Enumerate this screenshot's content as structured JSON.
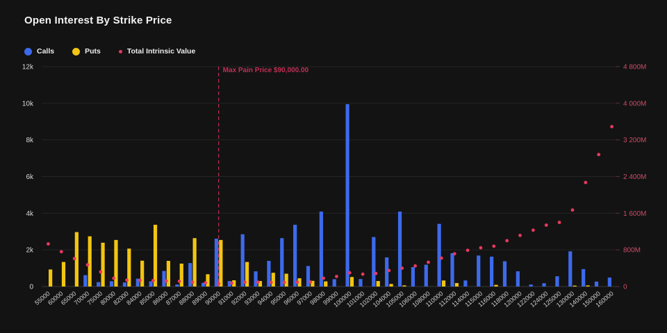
{
  "chart_data": {
    "type": "bar",
    "title": "Open Interest By Strike Price",
    "legend_position": "top-left",
    "grid": "horizontal",
    "categories": [
      "55000",
      "60000",
      "65000",
      "70000",
      "75000",
      "80000",
      "82000",
      "84000",
      "85000",
      "86000",
      "87000",
      "88000",
      "89000",
      "90000",
      "91000",
      "92000",
      "93000",
      "94000",
      "95000",
      "96000",
      "97000",
      "98000",
      "99000",
      "100000",
      "101000",
      "102000",
      "104000",
      "105000",
      "106000",
      "108000",
      "110000",
      "112000",
      "114000",
      "115000",
      "116000",
      "118000",
      "120000",
      "122000",
      "124000",
      "125000",
      "130000",
      "140000",
      "150000",
      "160000"
    ],
    "series": [
      {
        "name": "Calls",
        "render": "bar",
        "axis": "left",
        "color": "#3D6AEC",
        "values": [
          0,
          0,
          0,
          620,
          240,
          290,
          220,
          430,
          280,
          850,
          110,
          1280,
          200,
          2610,
          300,
          2850,
          830,
          1400,
          2640,
          3370,
          1120,
          4090,
          400,
          9950,
          410,
          2700,
          1590,
          4090,
          1060,
          1190,
          3420,
          1820,
          330,
          1690,
          1630,
          1380,
          830,
          110,
          180,
          560,
          1920,
          950,
          270,
          490
        ]
      },
      {
        "name": "Puts",
        "render": "bar",
        "axis": "left",
        "color": "#F2C511",
        "values": [
          930,
          1340,
          2970,
          2740,
          2390,
          2540,
          2070,
          1410,
          3370,
          1400,
          1250,
          2640,
          670,
          2540,
          340,
          1340,
          300,
          750,
          700,
          450,
          310,
          280,
          0,
          520,
          0,
          300,
          140,
          60,
          0,
          0,
          330,
          190,
          0,
          0,
          90,
          0,
          0,
          0,
          0,
          0,
          50,
          60,
          0,
          0
        ]
      },
      {
        "name": "Total Intrinsic Value",
        "render": "point",
        "axis": "right",
        "color": "#E8395E",
        "unit": "M",
        "values": [
          930,
          760,
          610,
          475,
          320,
          180,
          140,
          135,
          130,
          120,
          115,
          95,
          80,
          60,
          75,
          95,
          95,
          90,
          90,
          95,
          100,
          180,
          220,
          300,
          270,
          285,
          350,
          400,
          450,
          530,
          620,
          715,
          790,
          845,
          880,
          1000,
          1115,
          1230,
          1340,
          1400,
          1670,
          2270,
          2880,
          3490
        ]
      }
    ],
    "left_axis": {
      "min": 0,
      "max": 12000,
      "ticks": [
        "0",
        "2k",
        "4k",
        "6k",
        "8k",
        "10k",
        "12k"
      ],
      "label_color": "#d9d9d9"
    },
    "right_axis": {
      "min": 0,
      "max": 4800,
      "unit": "M",
      "ticks": [
        "0",
        "800M",
        "1 600M",
        "2 400M",
        "3 200M",
        "4 000M",
        "4 800M"
      ],
      "label_color": "#CE4A68"
    },
    "annotation": {
      "type": "vline",
      "category": "90000",
      "label": "Max Pain Price $90,000.00",
      "color": "#C22E55"
    }
  }
}
